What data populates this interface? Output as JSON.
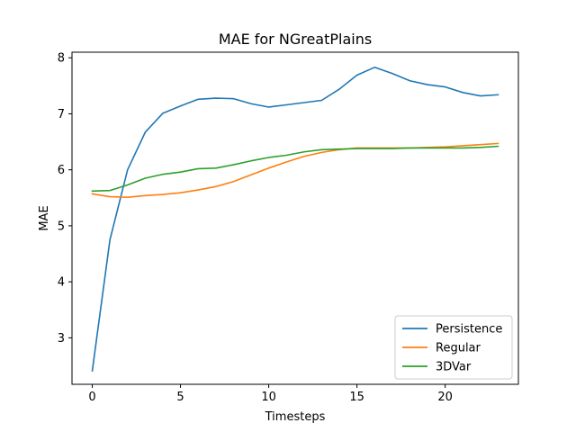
{
  "chart_data": {
    "type": "line",
    "title": "MAE for NGreatPlains",
    "xlabel": "Timesteps",
    "ylabel": "MAE",
    "xlim": [
      -1.15,
      24.15
    ],
    "ylim": [
      2.17,
      8.1
    ],
    "xticks": [
      0,
      5,
      10,
      15,
      20
    ],
    "yticks": [
      3,
      4,
      5,
      6,
      7,
      8
    ],
    "grid": false,
    "legend": "lower right",
    "x": [
      0,
      1,
      2,
      3,
      4,
      5,
      6,
      7,
      8,
      9,
      10,
      11,
      12,
      13,
      14,
      15,
      16,
      17,
      18,
      19,
      20,
      21,
      22,
      23
    ],
    "series": [
      {
        "name": "Persistence",
        "color": "#1f77b4",
        "values": [
          2.41,
          4.75,
          6.0,
          6.67,
          7.01,
          7.14,
          7.26,
          7.28,
          7.27,
          7.18,
          7.12,
          7.16,
          7.2,
          7.24,
          7.44,
          7.69,
          7.83,
          7.72,
          7.59,
          7.52,
          7.48,
          7.38,
          7.32,
          7.34
        ]
      },
      {
        "name": "Regular",
        "color": "#ff7f0e",
        "values": [
          5.57,
          5.52,
          5.51,
          5.54,
          5.56,
          5.59,
          5.64,
          5.7,
          5.79,
          5.91,
          6.03,
          6.14,
          6.24,
          6.31,
          6.36,
          6.39,
          6.39,
          6.39,
          6.39,
          6.4,
          6.41,
          6.43,
          6.45,
          6.47
        ]
      },
      {
        "name": "3DVar",
        "color": "#2ca02c",
        "values": [
          5.62,
          5.63,
          5.73,
          5.85,
          5.92,
          5.96,
          6.02,
          6.03,
          6.09,
          6.16,
          6.22,
          6.26,
          6.32,
          6.36,
          6.37,
          6.38,
          6.38,
          6.38,
          6.39,
          6.39,
          6.39,
          6.39,
          6.4,
          6.42
        ]
      }
    ]
  }
}
